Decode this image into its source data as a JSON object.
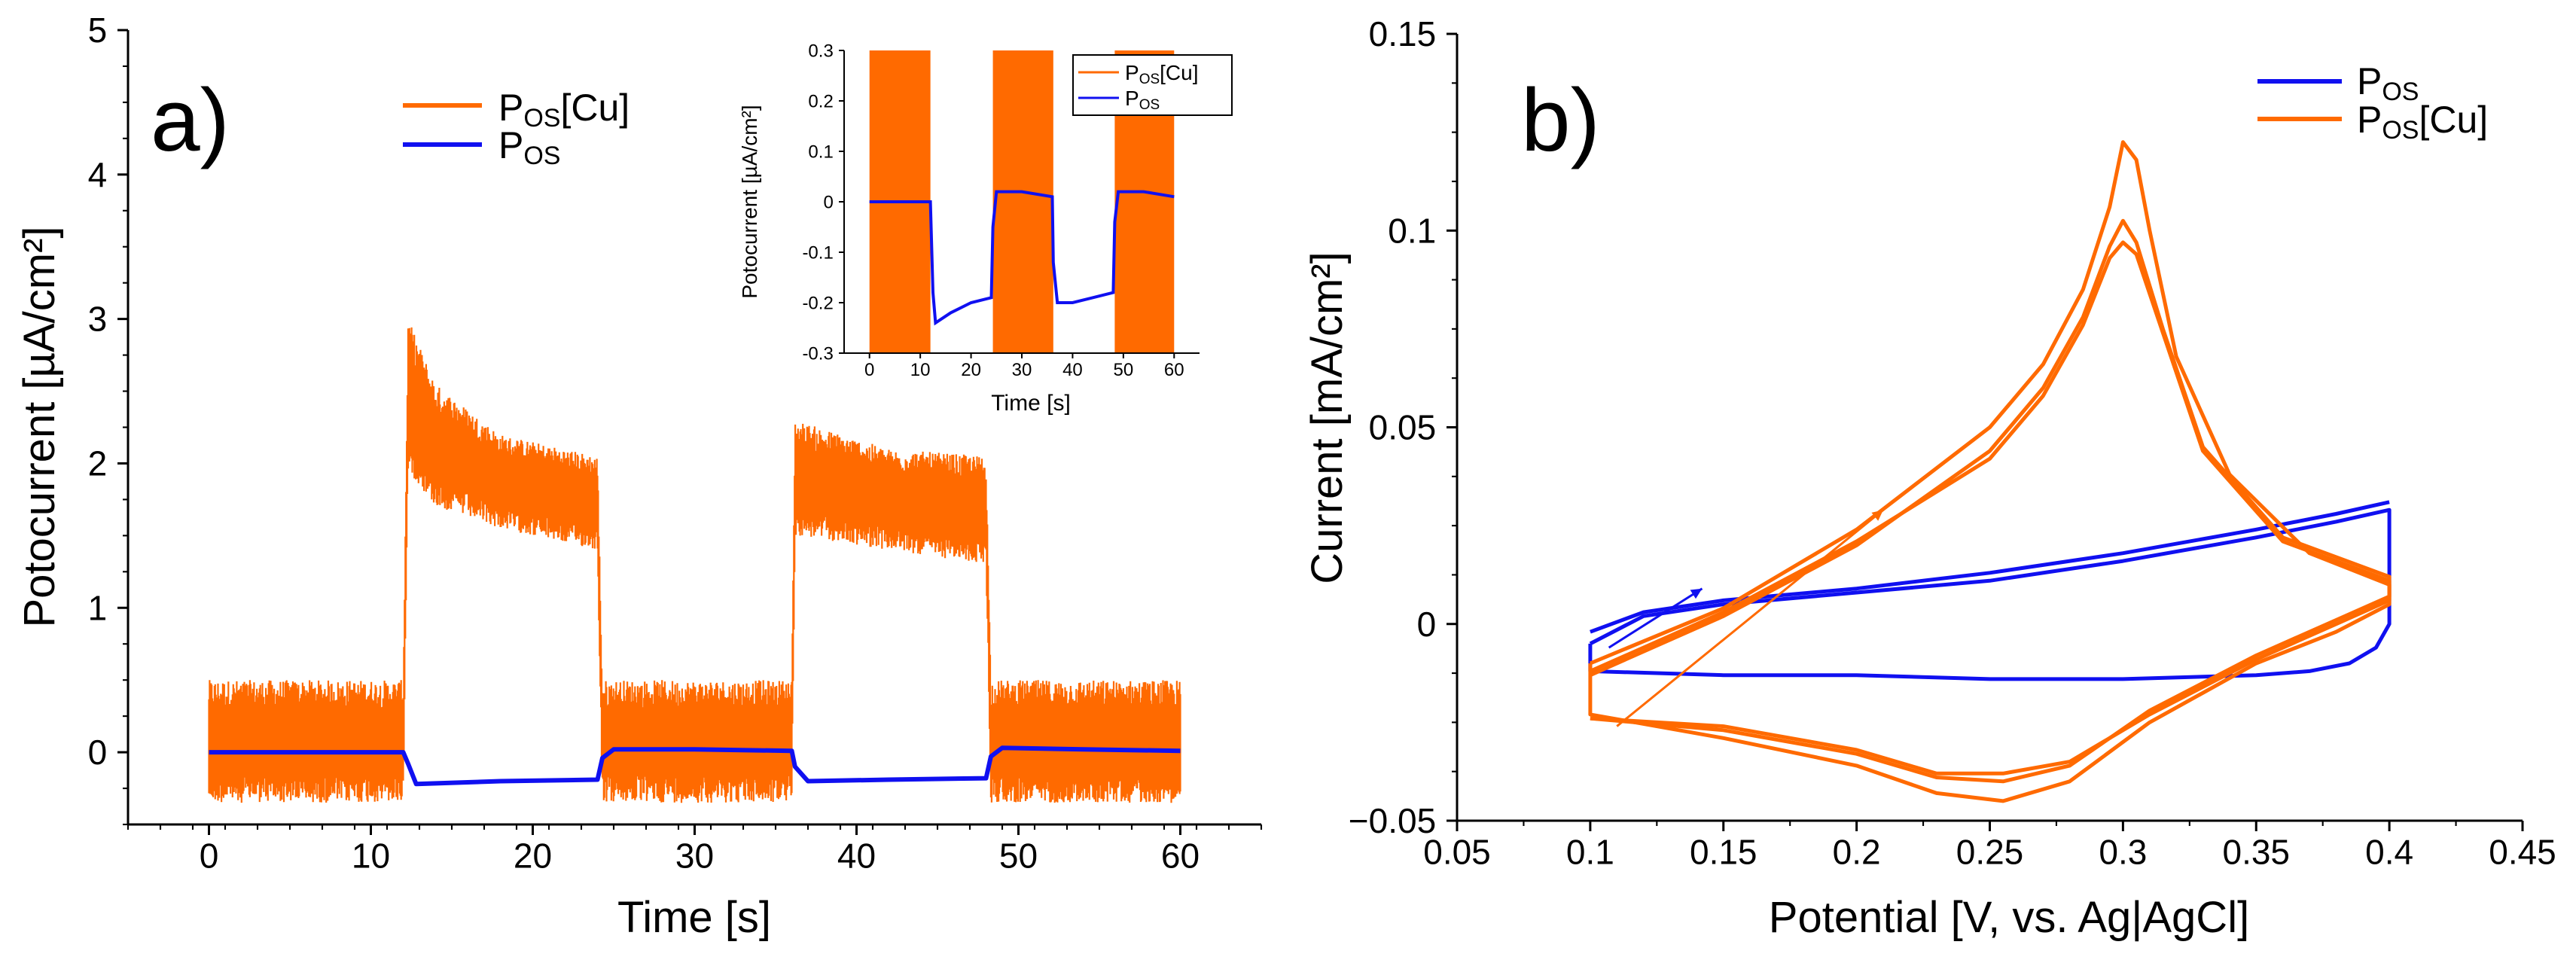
{
  "colors": {
    "orange": "#FF6A00",
    "blue": "#1010F0",
    "axis": "#000000"
  },
  "chart_data": [
    {
      "panel_label": "a)",
      "type": "line",
      "xlabel": "Time [s]",
      "ylabel": "Potocurrent [µA/cm²]",
      "xlim": [
        -5,
        65
      ],
      "ylim": [
        -0.5,
        5
      ],
      "xticks": [
        0,
        10,
        20,
        30,
        40,
        50,
        60
      ],
      "yticks": [
        0,
        1,
        2,
        3,
        4,
        5
      ],
      "legend_position": "top-center",
      "light_on_intervals": [
        [
          12,
          24.3
        ],
        [
          36.2,
          48.3
        ]
      ],
      "series": [
        {
          "name": "POS[Cu]",
          "name_main": "P",
          "name_sub": "OS",
          "name_suffix": "[Cu]",
          "color": "#FF6A00",
          "style": "noisy_band",
          "envelope": [
            {
              "x": 0,
              "low": -0.35,
              "high": 0.5
            },
            {
              "x": 12,
              "low": -0.35,
              "high": 0.5
            },
            {
              "x": 12.3,
              "low": 1.95,
              "high": 3.0
            },
            {
              "x": 14,
              "low": 1.7,
              "high": 2.55
            },
            {
              "x": 18,
              "low": 1.55,
              "high": 2.2
            },
            {
              "x": 24,
              "low": 1.4,
              "high": 2.05
            },
            {
              "x": 24.3,
              "low": -0.35,
              "high": 0.5
            },
            {
              "x": 36,
              "low": -0.35,
              "high": 0.5
            },
            {
              "x": 36.2,
              "low": 1.5,
              "high": 2.3
            },
            {
              "x": 42,
              "low": 1.4,
              "high": 2.1
            },
            {
              "x": 48,
              "low": 1.3,
              "high": 2.05
            },
            {
              "x": 48.3,
              "low": -0.35,
              "high": 0.5
            },
            {
              "x": 60,
              "low": -0.35,
              "high": 0.5
            }
          ]
        },
        {
          "name": "POS",
          "name_main": "P",
          "name_sub": "OS",
          "name_suffix": "",
          "color": "#1010F0",
          "style": "line",
          "x": [
            0,
            12,
            12.3,
            12.8,
            18,
            24,
            24.3,
            25,
            30,
            36,
            36.2,
            37,
            42,
            48,
            48.3,
            49,
            54,
            60
          ],
          "y": [
            0,
            0,
            -0.08,
            -0.22,
            -0.2,
            -0.19,
            -0.04,
            0.02,
            0.02,
            0.01,
            -0.1,
            -0.2,
            -0.19,
            -0.18,
            -0.03,
            0.03,
            0.02,
            0.01
          ]
        }
      ],
      "inset": {
        "xlabel": "Time [s]",
        "ylabel": "Potocurrent [µA/cm²]",
        "xlim": [
          -5,
          65
        ],
        "ylim": [
          -0.3,
          0.3
        ],
        "xticks": [
          0,
          10,
          20,
          30,
          40,
          50,
          60
        ],
        "yticks": [
          -0.3,
          -0.2,
          -0.1,
          0,
          0.1,
          0.2,
          0.3
        ],
        "ytick_labels": [
          "-0.3",
          "-0.2",
          "-0.1",
          "0",
          "0.1",
          "0.2",
          "0.3"
        ],
        "legend_position": "top-right",
        "orange_on_intervals": [
          [
            0,
            12
          ],
          [
            24.3,
            36.2
          ],
          [
            48.3,
            60
          ]
        ],
        "series": [
          {
            "name": "POS[Cu]",
            "name_main": "P",
            "name_sub": "OS",
            "name_suffix": "[Cu]",
            "color": "#FF6A00"
          },
          {
            "name": "POS",
            "name_main": "P",
            "name_sub": "OS",
            "name_suffix": "",
            "color": "#1010F0",
            "x": [
              0,
              12,
              12.5,
              13,
              16,
              20,
              24,
              24.3,
              25,
              30,
              36,
              36.2,
              37,
              40,
              44,
              48,
              48.3,
              49,
              54,
              60
            ],
            "y": [
              0,
              0,
              -0.18,
              -0.24,
              -0.22,
              -0.2,
              -0.19,
              -0.05,
              0.02,
              0.02,
              0.01,
              -0.12,
              -0.2,
              -0.2,
              -0.19,
              -0.18,
              -0.04,
              0.02,
              0.02,
              0.01
            ]
          }
        ]
      }
    },
    {
      "panel_label": "b)",
      "type": "line",
      "xlabel": "Potential [V, vs. Ag|AgCl]",
      "ylabel": "Current [mA/cm²]",
      "xlim": [
        0.05,
        0.45
      ],
      "ylim": [
        -0.05,
        0.15
      ],
      "xticks": [
        0.05,
        0.1,
        0.15,
        0.2,
        0.25,
        0.3,
        0.35,
        0.4,
        0.45
      ],
      "xtick_labels": [
        "0.05",
        "0.1",
        "0.15",
        "0.2",
        "0.25",
        "0.3",
        "0.35",
        "0.4",
        "0.45"
      ],
      "yticks": [
        -0.05,
        0,
        0.05,
        0.1,
        0.15
      ],
      "ytick_labels": [
        "−0.05",
        "0",
        "0.05",
        "0.1",
        "0.15"
      ],
      "legend_position": "top-right",
      "series": [
        {
          "name": "POS",
          "name_main": "P",
          "name_sub": "OS",
          "name_suffix": "",
          "color": "#1010F0",
          "cycles": [
            {
              "x": [
                0.1,
                0.12,
                0.15,
                0.2,
                0.25,
                0.3,
                0.35,
                0.38,
                0.4,
                0.4,
                0.395,
                0.385,
                0.37,
                0.35,
                0.3,
                0.25,
                0.2,
                0.15,
                0.1,
                0.1
              ],
              "y": [
                -0.005,
                0.002,
                0.005,
                0.008,
                0.011,
                0.016,
                0.022,
                0.026,
                0.029,
                0.0,
                -0.006,
                -0.01,
                -0.012,
                -0.013,
                -0.014,
                -0.014,
                -0.013,
                -0.013,
                -0.012,
                -0.005
              ]
            },
            {
              "x": [
                0.1,
                0.12,
                0.15,
                0.2,
                0.25,
                0.3,
                0.35,
                0.38,
                0.4
              ],
              "y": [
                -0.002,
                0.003,
                0.006,
                0.009,
                0.013,
                0.018,
                0.024,
                0.028,
                0.031
              ]
            }
          ],
          "arrow": {
            "x1": 0.135,
            "y1": 0.006,
            "x2": 0.142,
            "y2": 0.009
          }
        },
        {
          "name": "POS[Cu]",
          "name_main": "P",
          "name_sub": "OS",
          "name_suffix": "[Cu]",
          "color": "#FF6A00",
          "cycles": [
            {
              "x": [
                0.1,
                0.15,
                0.2,
                0.25,
                0.27,
                0.285,
                0.295,
                0.3,
                0.305,
                0.31,
                0.32,
                0.34,
                0.37,
                0.4,
                0.4,
                0.38,
                0.35,
                0.31,
                0.28,
                0.255,
                0.23,
                0.2,
                0.15,
                0.1,
                0.1
              ],
              "y": [
                -0.01,
                0.004,
                0.024,
                0.05,
                0.066,
                0.085,
                0.106,
                0.1225,
                0.118,
                0.1,
                0.068,
                0.038,
                0.018,
                0.01,
                0.005,
                -0.002,
                -0.01,
                -0.025,
                -0.04,
                -0.045,
                -0.043,
                -0.036,
                -0.029,
                -0.023,
                -0.01
              ]
            },
            {
              "x": [
                0.1,
                0.15,
                0.2,
                0.25,
                0.27,
                0.285,
                0.295,
                0.3,
                0.305,
                0.315,
                0.33,
                0.36,
                0.4,
                0.4,
                0.38,
                0.35,
                0.31,
                0.28,
                0.255,
                0.23,
                0.2,
                0.15,
                0.1
              ],
              "y": [
                -0.013,
                0.002,
                0.02,
                0.044,
                0.06,
                0.078,
                0.096,
                0.1025,
                0.097,
                0.075,
                0.045,
                0.022,
                0.012,
                0.007,
                0.001,
                -0.008,
                -0.022,
                -0.036,
                -0.04,
                -0.039,
                -0.033,
                -0.027,
                -0.024
              ]
            },
            {
              "x": [
                0.1,
                0.15,
                0.2,
                0.25,
                0.27,
                0.285,
                0.295,
                0.3,
                0.305,
                0.315,
                0.33,
                0.36,
                0.4,
                0.4,
                0.38,
                0.35,
                0.31,
                0.28,
                0.255,
                0.23,
                0.2,
                0.15,
                0.1
              ],
              "y": [
                -0.012,
                0.003,
                0.021,
                0.042,
                0.058,
                0.076,
                0.093,
                0.097,
                0.094,
                0.074,
                0.044,
                0.021,
                0.011,
                0.006,
                0.0,
                -0.009,
                -0.023,
                -0.035,
                -0.038,
                -0.038,
                -0.032,
                -0.026,
                -0.024
              ]
            }
          ],
          "arrow": {
            "x1": 0.19,
            "y1": 0.018,
            "x2": 0.21,
            "y2": 0.029
          }
        }
      ]
    }
  ]
}
